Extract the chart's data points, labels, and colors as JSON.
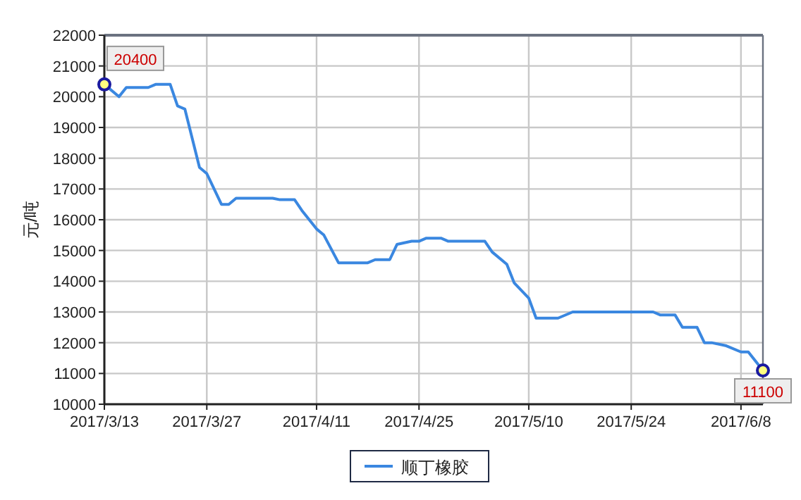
{
  "chart_data": {
    "type": "line",
    "ylabel": "元/吨",
    "x": [
      "2017-03-13",
      "2017-03-15",
      "2017-03-16",
      "2017-03-19",
      "2017-03-20",
      "2017-03-22",
      "2017-03-23",
      "2017-03-24",
      "2017-03-26",
      "2017-03-27",
      "2017-03-29",
      "2017-03-30",
      "2017-03-31",
      "2017-04-05",
      "2017-04-06",
      "2017-04-08",
      "2017-04-09",
      "2017-04-11",
      "2017-04-12",
      "2017-04-14",
      "2017-04-18",
      "2017-04-19",
      "2017-04-21",
      "2017-04-22",
      "2017-04-24",
      "2017-04-25",
      "2017-04-26",
      "2017-04-28",
      "2017-04-29",
      "2017-05-04",
      "2017-05-05",
      "2017-05-07",
      "2017-05-08",
      "2017-05-10",
      "2017-05-11",
      "2017-05-14",
      "2017-05-16",
      "2017-05-27",
      "2017-05-28",
      "2017-05-30",
      "2017-05-31",
      "2017-06-02",
      "2017-06-03",
      "2017-06-04",
      "2017-06-06",
      "2017-06-08",
      "2017-06-09",
      "2017-06-11"
    ],
    "series": [
      {
        "name": "顺丁橡胶",
        "color": "#3a87e0",
        "values": [
          20400,
          20000,
          20300,
          20300,
          20400,
          20400,
          19700,
          19600,
          17700,
          17500,
          16500,
          16500,
          16700,
          16700,
          16650,
          16650,
          16300,
          15700,
          15500,
          14600,
          14600,
          14700,
          14700,
          15200,
          15300,
          15300,
          15400,
          15400,
          15300,
          15300,
          14950,
          14550,
          13950,
          13450,
          12800,
          12800,
          13000,
          13000,
          12900,
          12900,
          12500,
          12500,
          12000,
          12000,
          11900,
          11700,
          11700,
          11100
        ]
      }
    ],
    "xlim": [
      "2017-03-13",
      "2017-06-11"
    ],
    "xticks": [
      {
        "value": "2017-03-13",
        "label": "2017/3/13"
      },
      {
        "value": "2017-03-27",
        "label": "2017/3/27"
      },
      {
        "value": "2017-04-11",
        "label": "2017/4/11"
      },
      {
        "value": "2017-04-25",
        "label": "2017/4/25"
      },
      {
        "value": "2017-05-10",
        "label": "2017/5/10"
      },
      {
        "value": "2017-05-24",
        "label": "2017/5/24"
      },
      {
        "value": "2017-06-08",
        "label": "2017/6/8"
      }
    ],
    "ylim": [
      10000,
      22000
    ],
    "yticks": [
      10000,
      11000,
      12000,
      13000,
      14000,
      15000,
      16000,
      17000,
      18000,
      19000,
      20000,
      21000,
      22000
    ],
    "annotations": [
      {
        "text": "20400",
        "x": "2017-03-13",
        "y": 20400
      },
      {
        "text": "11100",
        "x": "2017-06-11",
        "y": 11100
      }
    ],
    "grid": true,
    "legend": "bottom",
    "marker": "none",
    "line_style": "solid"
  }
}
